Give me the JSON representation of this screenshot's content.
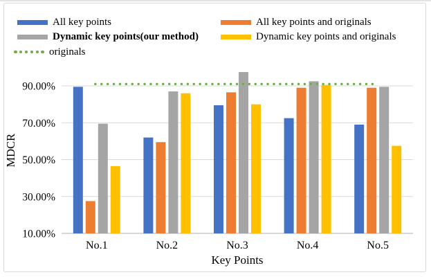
{
  "figure": {
    "background": "#ffffff",
    "frame_border_color": "#d7d7d7"
  },
  "chart_data": {
    "type": "bar",
    "title": "",
    "xlabel": "Key Points",
    "ylabel": "MDCR",
    "categories": [
      "No.1",
      "No.2",
      "No.3",
      "No.4",
      "No.5"
    ],
    "series": [
      {
        "name": "All key points",
        "color": "#4472C4",
        "bold": false,
        "values": [
          89.5,
          62,
          79.5,
          72.5,
          69
        ]
      },
      {
        "name": "All key points and originals",
        "color": "#ED7D31",
        "bold": false,
        "values": [
          27.5,
          59.5,
          86.5,
          89,
          89
        ]
      },
      {
        "name": "Dynamic key points(our method)",
        "color": "#A5A5A5",
        "bold": true,
        "values": [
          69.5,
          87,
          97.5,
          92.5,
          89.5
        ]
      },
      {
        "name": "Dynamic key points and originals",
        "color": "#FFC000",
        "bold": false,
        "values": [
          46.5,
          86,
          80,
          90.5,
          57.5
        ]
      }
    ],
    "reference_line": {
      "name": "originals",
      "color": "#70AD47",
      "value": 91,
      "style": "dotted"
    },
    "ylim": [
      10,
      100
    ],
    "yticks": [
      10,
      30,
      50,
      70,
      90
    ],
    "ytick_labels": [
      "10.00%",
      "30.00%",
      "50.00%",
      "70.00%",
      "90.00%"
    ],
    "grid": true,
    "gridline_color": "#d9d9d9",
    "axis_line_color": "#bfbfbf",
    "legend_position": "top"
  }
}
